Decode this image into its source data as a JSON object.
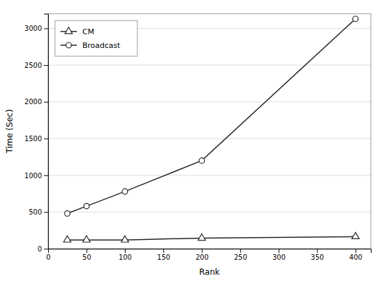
{
  "chart_data": {
    "type": "line",
    "x": [
      25,
      50,
      100,
      200,
      400
    ],
    "series": [
      {
        "name": "CM",
        "color": "#222222",
        "marker": "triangle",
        "values": [
          120,
          120,
          120,
          145,
          165
        ]
      },
      {
        "name": "Broadcast",
        "color": "#222222",
        "marker": "circle",
        "values": [
          480,
          580,
          780,
          1200,
          3130
        ]
      }
    ],
    "xlabel": "Rank",
    "ylabel": "Time (Sec)",
    "xlim": [
      0,
      420
    ],
    "ylim": [
      0,
      3200
    ],
    "xticks": [
      0,
      50,
      100,
      150,
      200,
      250,
      300,
      350,
      400
    ],
    "yticks": [
      0,
      500,
      1000,
      1500,
      2000,
      2500,
      3000
    ],
    "grid": "y",
    "legend": "upper left"
  }
}
